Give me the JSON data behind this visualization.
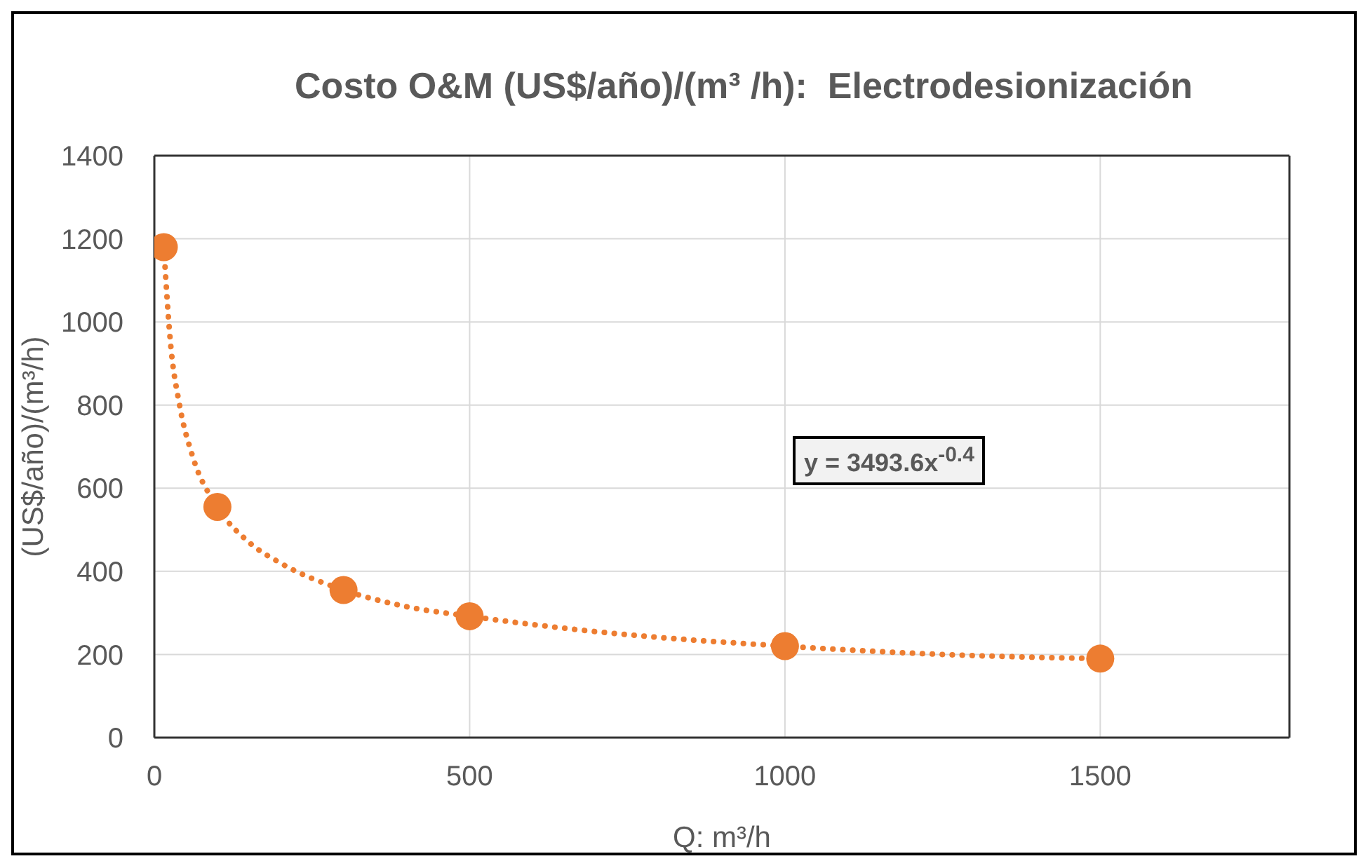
{
  "chart_data": {
    "type": "scatter",
    "title": "Costo O&M (US$/año)/(m³ /h):  Electrodesionización",
    "xlabel": "Q: m³/h",
    "ylabel": "(US$/año)/(m³/h)",
    "xlim": [
      0,
      1800
    ],
    "xticks": [
      0,
      500,
      1000,
      1500
    ],
    "ylim": [
      0,
      1400
    ],
    "yticks": [
      0,
      200,
      400,
      600,
      800,
      1000,
      1200,
      1400
    ],
    "grid": true,
    "marker": "circle",
    "annotations": [
      "y = 3493.6x$^{-0.4}$"
    ],
    "series": [
      {
        "color": "#ed7d31",
        "x": [
          15,
          100,
          300,
          500,
          1000,
          1500
        ],
        "values": [
          1180,
          555,
          355,
          292,
          220,
          190
        ]
      },
      {
        "type": "line",
        "color": "#ed7d31",
        "line_style": "dotted",
        "marker": "none",
        "x": [
          15,
          25,
          40,
          60,
          100,
          150,
          200,
          300,
          400,
          500,
          700,
          1000,
          1250,
          1500
        ],
        "values": [
          1180,
          960,
          800,
          680,
          555,
          470,
          420,
          355,
          315,
          292,
          255,
          220,
          200,
          190
        ]
      }
    ]
  }
}
